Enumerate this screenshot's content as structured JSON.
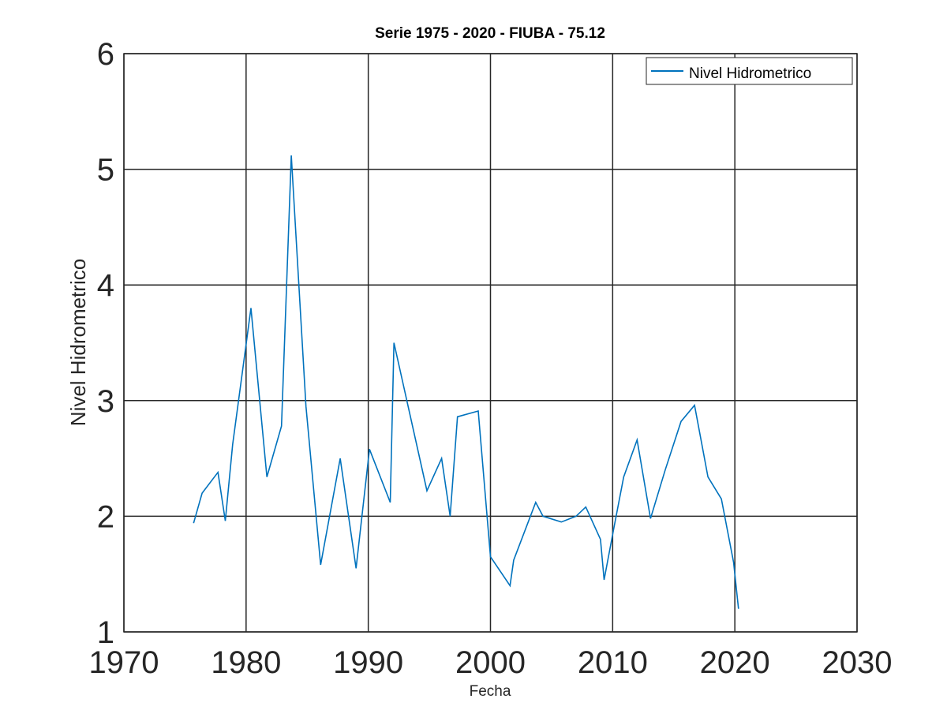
{
  "chart_data": {
    "type": "line",
    "title": "Serie 1975 - 2020 - FIUBA - 75.12",
    "xlabel": "Fecha",
    "ylabel": "Nivel Hidrometrico",
    "xlim": [
      1970,
      2030
    ],
    "ylim": [
      1,
      6
    ],
    "x_ticks": [
      "1970",
      "1980",
      "1990",
      "2000",
      "2010",
      "2020",
      "2030"
    ],
    "y_ticks": [
      "1",
      "2",
      "3",
      "4",
      "5",
      "6"
    ],
    "grid": true,
    "legend_position": "top-right",
    "series": [
      {
        "name": "Nivel Hidrometrico",
        "color": "#0072BD",
        "x": [
          1975.7,
          1976.4,
          1977.7,
          1978.3,
          1978.9,
          1979.7,
          1980.4,
          1981.7,
          1982.9,
          1983.7,
          1984.9,
          1986.1,
          1987.7,
          1989.0,
          1990.1,
          1991.8,
          1992.1,
          1994.8,
          1996.0,
          1996.7,
          1997.3,
          1999.0,
          2000.0,
          2001.6,
          2001.9,
          2003.7,
          2004.3,
          2005.8,
          2007.0,
          2007.8,
          2009.0,
          2009.3,
          2010.1,
          2010.9,
          2012.0,
          2013.1,
          2014.3,
          2015.6,
          2016.7,
          2017.8,
          2018.9,
          2019.9,
          2020.3
        ],
        "values": [
          1.94,
          2.2,
          2.38,
          1.96,
          2.62,
          3.25,
          3.8,
          2.34,
          2.78,
          5.12,
          2.95,
          1.58,
          2.5,
          1.55,
          2.58,
          2.12,
          3.5,
          2.22,
          2.5,
          2.0,
          2.86,
          2.91,
          1.65,
          1.4,
          1.62,
          2.12,
          2.0,
          1.95,
          2.0,
          2.08,
          1.8,
          1.45,
          1.9,
          2.34,
          2.66,
          1.98,
          2.4,
          2.82,
          2.96,
          2.34,
          2.15,
          1.6,
          1.2
        ]
      }
    ]
  }
}
